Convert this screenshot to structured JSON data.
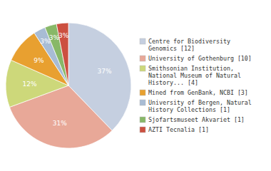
{
  "chart_data": {
    "type": "pie",
    "categories": [
      "Centre for Biodiversity\nGenomics [12]",
      "University of Gothenburg [10]",
      "Smithsonian Institution,\nNational Museum of Natural\nHistory... [4]",
      "Mined from GenBank, NCBI [3]",
      "University of Bergen, Natural\nHistory Collections [1]",
      "Sjofartsmuseet Akvariet [1]",
      "AZTI Tecnalia [1]"
    ],
    "values": [
      37,
      31,
      12,
      9,
      3,
      3,
      3
    ],
    "value_labels": [
      "37%",
      "31%",
      "12%",
      "9%",
      "3%",
      "3%",
      "3%"
    ],
    "colors": [
      "#c5cfe0",
      "#e8a898",
      "#cdd87a",
      "#e8a030",
      "#a8bcd4",
      "#88b868",
      "#cc5040"
    ],
    "data_labels": true,
    "legend": "right"
  }
}
